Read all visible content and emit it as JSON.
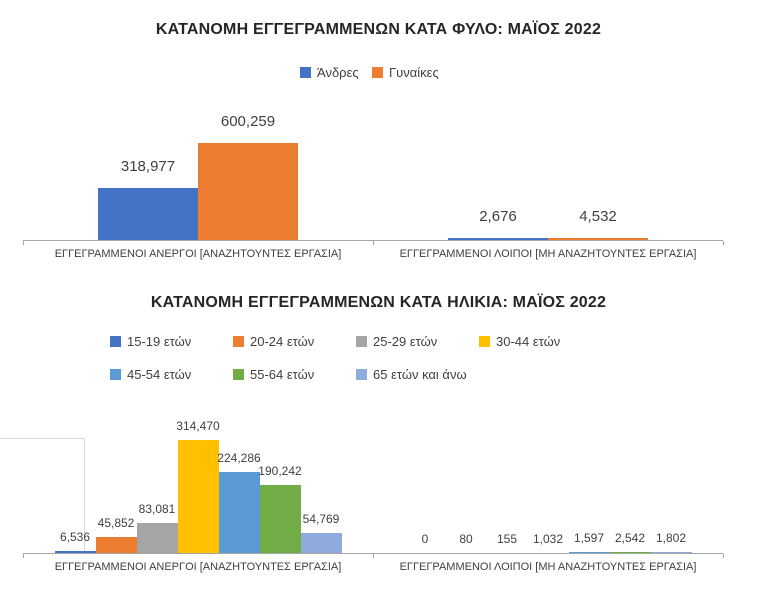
{
  "page": {
    "background": "#ffffff"
  },
  "chart_data": [
    {
      "type": "bar",
      "title": "ΚΑΤΑΝΟΜΗ ΕΓΓΕΓΡΑΜΜΕΝΩΝ ΚΑΤΑ ΦΥΛΟ: ΜΑΪΟΣ 2022",
      "categories": [
        "ΕΓΓΕΓΡΑΜΜΕΝΟΙ ΑΝΕΡΓΟΙ [ΑΝΑΖΗΤΟΥΝΤΕΣ ΕΡΓΑΣΙΑ]",
        "ΕΓΓΕΓΡΑΜΜΕΝΟΙ ΛΟΙΠΟΙ [ΜΗ ΑΝΑΖΗΤΟΥΝΤΕΣ ΕΡΓΑΣΙΑ]"
      ],
      "legend_position": "top-center",
      "grid": false,
      "ylim": [
        0,
        650000
      ],
      "series": [
        {
          "name": "Άνδρες",
          "color": "#4472C4",
          "values": [
            318977,
            2676
          ],
          "labels": [
            "318,977",
            "2,676"
          ]
        },
        {
          "name": "Γυναίκες",
          "color": "#ED7D31",
          "values": [
            600259,
            4532
          ],
          "labels": [
            "600,259",
            "4,532"
          ]
        }
      ]
    },
    {
      "type": "bar",
      "title": "ΚΑΤΑΝΟΜΗ ΕΓΓΕΓΡΑΜΜΕΝΩΝ ΚΑΤΑ ΗΛΙΚΙΑ: ΜΑΪΟΣ 2022",
      "categories": [
        "ΕΓΓΕΓΡΑΜΜΕΝΟΙ ΑΝΕΡΓΟΙ [ΑΝΑΖΗΤΟΥΝΤΕΣ ΕΡΓΑΣΙΑ]",
        "ΕΓΓΕΓΡΑΜΜΕΝΟΙ ΛΟΙΠΟΙ [ΜΗ ΑΝΑΖΗΤΟΥΝΤΕΣ ΕΡΓΑΣΙΑ]"
      ],
      "legend_position": "top-left-two-rows",
      "grid": false,
      "ylim": [
        0,
        350000
      ],
      "series": [
        {
          "name": "15-19 ετών",
          "color": "#4472C4",
          "values": [
            6536,
            0
          ],
          "labels": [
            "6,536",
            "0"
          ]
        },
        {
          "name": "20-24 ετών",
          "color": "#ED7D31",
          "values": [
            45852,
            80
          ],
          "labels": [
            "45,852",
            "80"
          ]
        },
        {
          "name": "25-29 ετών",
          "color": "#A5A5A5",
          "values": [
            83081,
            155
          ],
          "labels": [
            "83,081",
            "155"
          ]
        },
        {
          "name": "30-44 ετών",
          "color": "#FFC000",
          "values": [
            314470,
            1032
          ],
          "labels": [
            "314,470",
            "1,032"
          ]
        },
        {
          "name": "45-54 ετών",
          "color": "#5B9BD5",
          "values": [
            224286,
            1597
          ],
          "labels": [
            "224,286",
            "1,597"
          ]
        },
        {
          "name": "55-64 ετών",
          "color": "#70AD47",
          "values": [
            190242,
            2542
          ],
          "labels": [
            "190,242",
            "2,542"
          ]
        },
        {
          "name": "65 ετών και άνω",
          "color": "#8FAADC",
          "values": [
            54769,
            1802
          ],
          "labels": [
            "54,769",
            "1,802"
          ]
        }
      ]
    }
  ]
}
